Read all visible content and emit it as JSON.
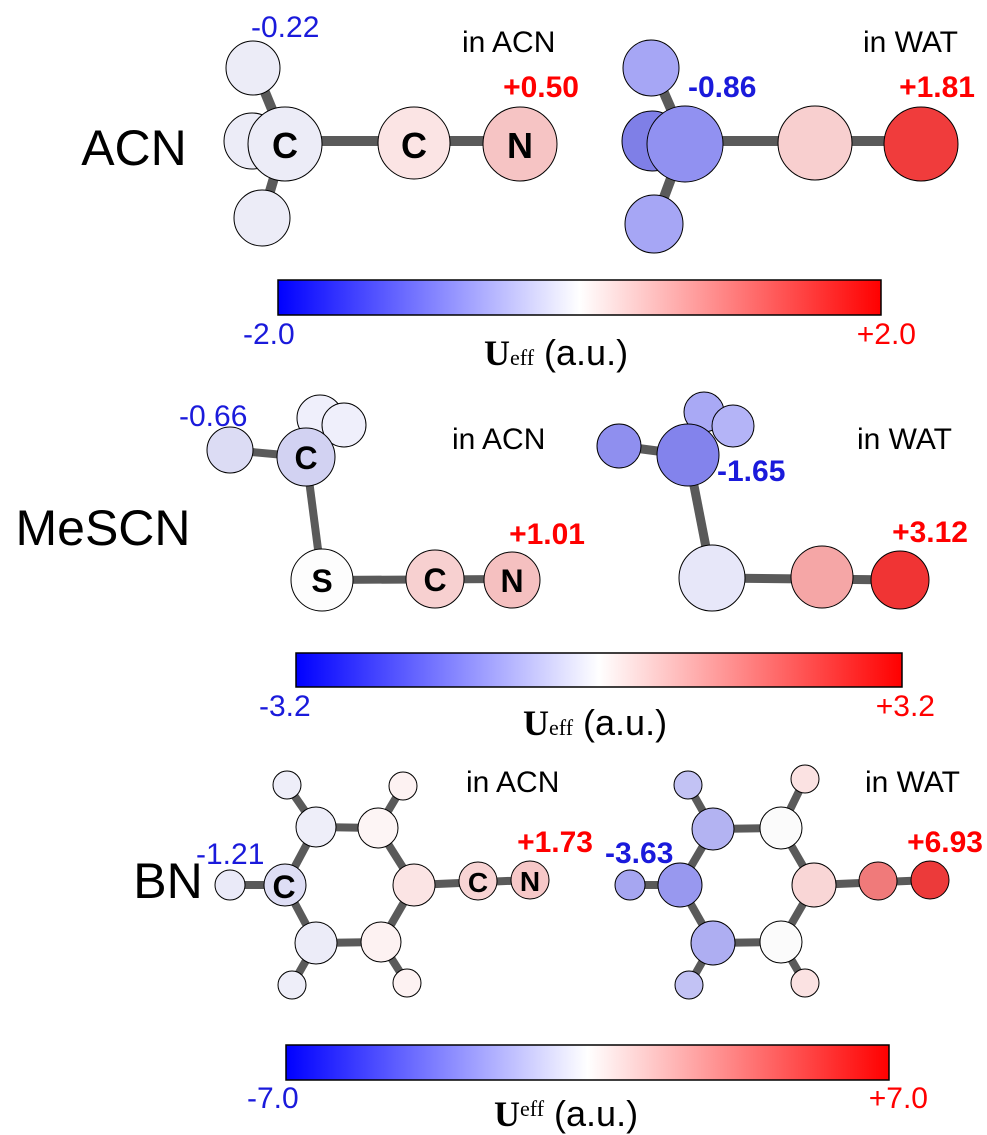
{
  "colors": {
    "negative": "#0000ff",
    "negative_label": "#1a1adb",
    "positive": "#ff0000",
    "text": "#000000",
    "bond": "#5a5a5a"
  },
  "panels": [
    {
      "id": "acn",
      "molecule": "ACN",
      "solvent_left": "in ACN",
      "solvent_right": "in WAT",
      "atom_letters": [
        "C",
        "C",
        "N"
      ],
      "left_min_value": "-0.22",
      "left_max_value": "+0.50",
      "right_min_value": "-0.86",
      "right_max_value": "+1.81",
      "colorbar": {
        "min_label": "-2.0",
        "max_label": "+2.0",
        "min": -2.0,
        "max": 2.0,
        "axis_symbol": "U",
        "axis_subscript": "eff",
        "axis_unit": "(a.u.)"
      }
    },
    {
      "id": "mescn",
      "molecule": "MeSCN",
      "solvent_left": "in ACN",
      "solvent_right": "in WAT",
      "atom_letters": [
        "C",
        "S",
        "C",
        "N"
      ],
      "left_min_value": "-0.66",
      "left_max_value": "+1.01",
      "right_min_value": "-1.65",
      "right_max_value": "+3.12",
      "colorbar": {
        "min_label": "-3.2",
        "max_label": "+3.2",
        "min": -3.2,
        "max": 3.2,
        "axis_symbol": "U",
        "axis_subscript": "eff",
        "axis_unit": "(a.u.)"
      }
    },
    {
      "id": "bn",
      "molecule": "BN",
      "solvent_left": "in ACN",
      "solvent_right": "in WAT",
      "atom_letters": [
        "C",
        "C",
        "N"
      ],
      "left_min_value": "-1.21",
      "left_max_value": "+1.73",
      "right_min_value": "-3.63",
      "right_max_value": "+6.93",
      "colorbar": {
        "min_label": "-7.0",
        "max_label": "+7.0",
        "min": -7.0,
        "max": 7.0,
        "axis_symbol": "U",
        "axis_subscript": "eff",
        "axis_unit": "(a.u.)"
      }
    }
  ]
}
